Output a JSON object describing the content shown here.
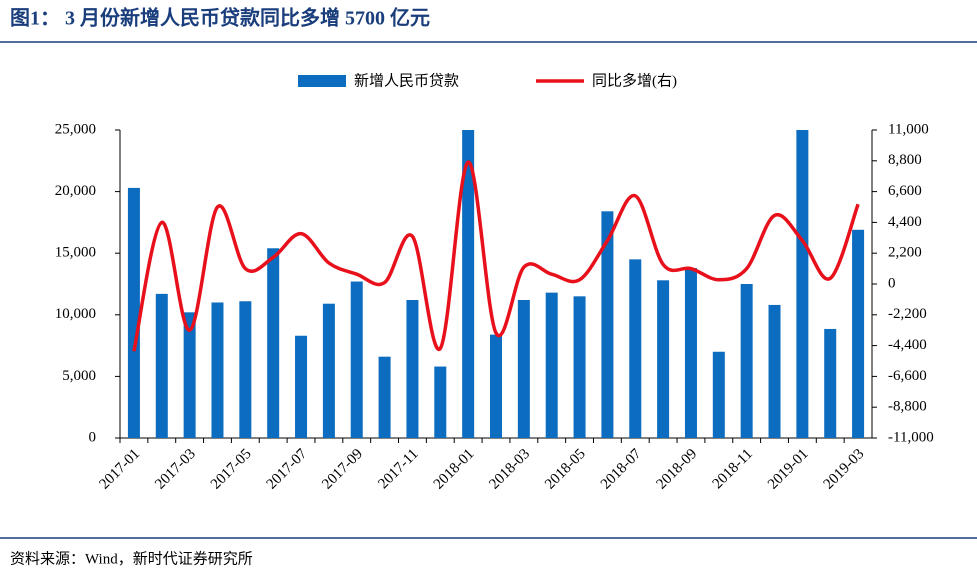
{
  "chart_data": {
    "type": "bar-line",
    "title": "图1： 3 月份新增人民币贷款同比多增 5700 亿元",
    "source": "资料来源：Wind，新时代证券研究所",
    "categories": [
      "2017-01",
      null,
      "2017-03",
      null,
      "2017-05",
      null,
      "2017-07",
      null,
      "2017-09",
      null,
      "2017-11",
      null,
      "2018-01",
      null,
      "2018-03",
      null,
      "2018-05",
      null,
      "2018-07",
      null,
      "2018-09",
      null,
      "2018-11",
      null,
      "2019-01",
      null,
      "2019-03"
    ],
    "series": [
      {
        "name": "新增人民币贷款",
        "type": "bar",
        "color": "#0c6cbf",
        "values": [
          20300,
          11700,
          10200,
          11000,
          11100,
          15400,
          8300,
          10900,
          12700,
          6600,
          11200,
          5800,
          25000,
          8390,
          11200,
          11800,
          11500,
          18400,
          14500,
          12800,
          13800,
          7000,
          12500,
          10800,
          25000,
          8850,
          16900
        ]
      },
      {
        "name": "同比多增(右)",
        "type": "line",
        "axis": "y2",
        "color": "#e8101a",
        "values": [
          -4800,
          4400,
          -3300,
          5500,
          1100,
          1900,
          3600,
          1500,
          700,
          100,
          3400,
          -4600,
          8700,
          -3500,
          1200,
          700,
          300,
          3100,
          6300,
          1400,
          1100,
          300,
          1100,
          4900,
          3100,
          400,
          5700
        ]
      }
    ],
    "ylim": [
      0,
      25000
    ],
    "yticks": [
      0,
      {
        "value": 5000,
        "label": "5,000"
      },
      {
        "value": 10000,
        "label": "10,000"
      },
      {
        "value": 15000,
        "label": "15,000"
      },
      {
        "value": 20000,
        "label": "20,000"
      },
      {
        "value": 25000,
        "label": "25,000"
      }
    ],
    "y2lim": [
      -11000,
      11000
    ],
    "y2ticks": [
      {
        "value": -11000,
        "label": "-11,000"
      },
      {
        "value": -8800,
        "label": "-8,800"
      },
      {
        "value": -6600,
        "label": "-6,600"
      },
      {
        "value": -4400,
        "label": "-4,400"
      },
      {
        "value": -2200,
        "label": "-2,200"
      },
      0,
      {
        "value": 2200,
        "label": "2,200"
      },
      {
        "value": 4400,
        "label": "4,400"
      },
      {
        "value": 6600,
        "label": "6,600"
      },
      {
        "value": 8800,
        "label": "8,800"
      },
      {
        "value": 11000,
        "label": "11,000"
      }
    ],
    "grid": false,
    "legend": "top"
  }
}
